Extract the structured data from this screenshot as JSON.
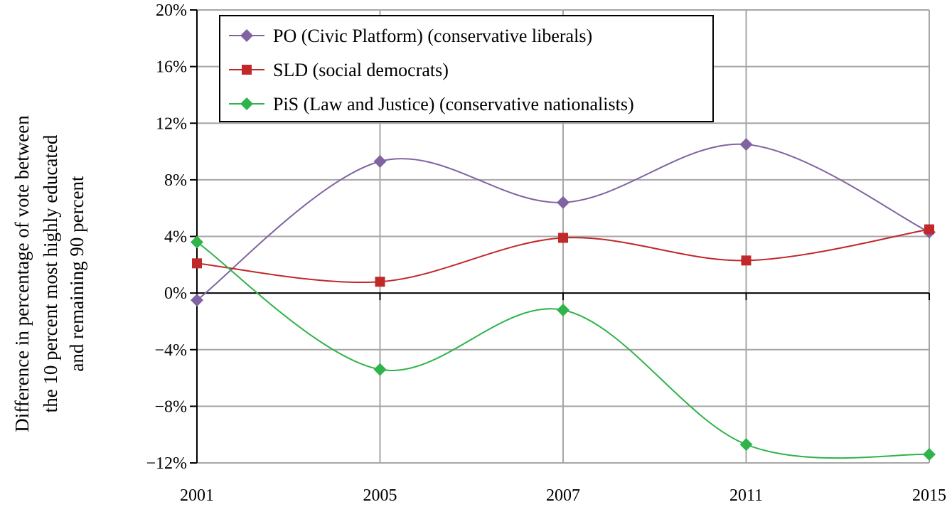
{
  "chart_data": {
    "type": "line",
    "title": "",
    "ylabel_lines": [
      "Difference in percentage of vote between",
      "the 10 percent most highly educated",
      "and remaining 90 percent"
    ],
    "xlabel": "",
    "categories": [
      "2001",
      "2005",
      "2007",
      "2011",
      "2015"
    ],
    "y_ticks": [
      "20%",
      "16%",
      "12%",
      "8%",
      "4%",
      "0%",
      "−4%",
      "−8%",
      "−12%"
    ],
    "y_tick_values": [
      20,
      16,
      12,
      8,
      4,
      0,
      -4,
      -8,
      -12
    ],
    "ylim": [
      -12,
      20
    ],
    "grid": true,
    "legend_position": "top-left",
    "series": [
      {
        "name": "PO (Civic Platform) (conservative liberals)",
        "color": "#8064a2",
        "marker": "diamond",
        "values": [
          -0.5,
          9.3,
          6.4,
          10.5,
          4.3
        ]
      },
      {
        "name": "SLD (social democrats)",
        "color": "#c0282a",
        "marker": "square",
        "values": [
          2.1,
          0.8,
          3.9,
          2.3,
          4.5
        ]
      },
      {
        "name": "PiS (Law and Justice) (conservative nationalists)",
        "color": "#2fb34a",
        "marker": "diamond",
        "values": [
          3.6,
          -5.4,
          -1.2,
          -10.7,
          -11.4
        ]
      }
    ]
  }
}
